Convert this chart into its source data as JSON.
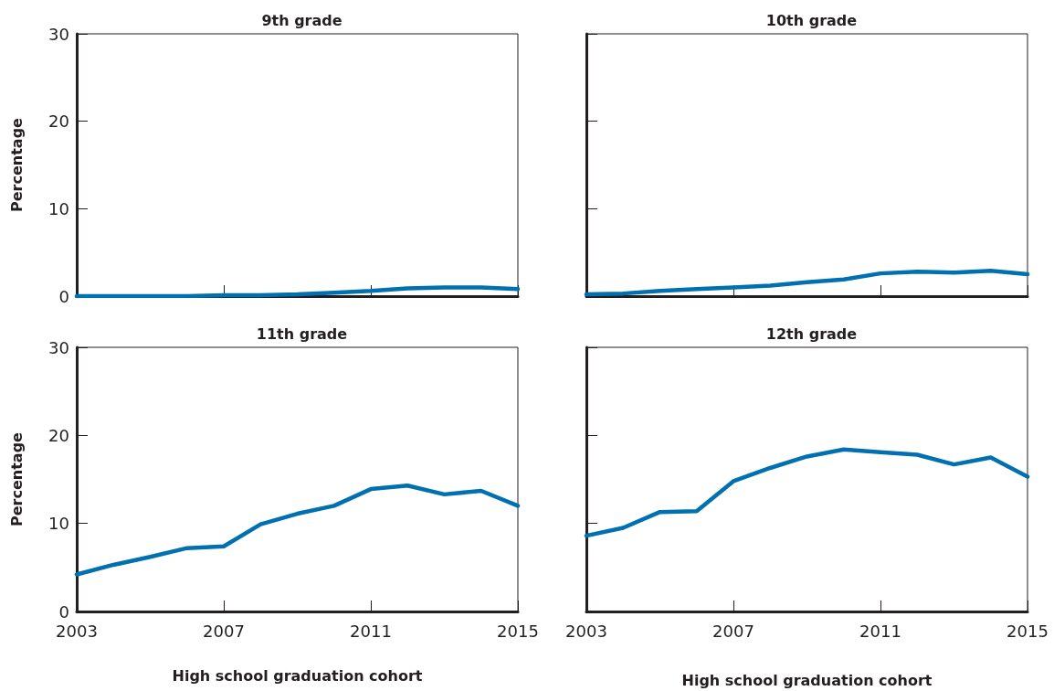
{
  "chart_data": [
    {
      "type": "line",
      "title": "9th grade",
      "ylabel": "Percentage",
      "x": [
        2003,
        2004,
        2005,
        2006,
        2007,
        2008,
        2009,
        2010,
        2011,
        2012,
        2013,
        2014,
        2015
      ],
      "xlim": [
        2003,
        2015
      ],
      "xticks": [
        2003,
        2007,
        2011,
        2015
      ],
      "ylim": [
        0,
        30
      ],
      "yticks": [
        0,
        10,
        20,
        30
      ],
      "tick_labels": "y",
      "series": [
        {
          "color": "#0070b0",
          "values": [
            0,
            0,
            0,
            0,
            0.1,
            0.1,
            0.2,
            0.4,
            0.6,
            0.9,
            1.0,
            1.0,
            0.8
          ]
        }
      ]
    },
    {
      "type": "line",
      "title": "10th grade",
      "x": [
        2003,
        2004,
        2005,
        2006,
        2007,
        2008,
        2009,
        2010,
        2011,
        2012,
        2013,
        2014,
        2015
      ],
      "xlim": [
        2003,
        2015
      ],
      "xticks": [
        2003,
        2007,
        2011,
        2015
      ],
      "ylim": [
        0,
        30
      ],
      "yticks": [
        0,
        10,
        20,
        30
      ],
      "tick_labels": false,
      "series": [
        {
          "color": "#0070b0",
          "values": [
            0.2,
            0.3,
            0.6,
            0.8,
            1.0,
            1.2,
            1.6,
            1.9,
            2.6,
            2.8,
            2.7,
            2.9,
            2.5
          ]
        }
      ]
    },
    {
      "type": "line",
      "title": "11th grade",
      "xlabel": "High school graduation cohort",
      "ylabel": "Percentage",
      "x": [
        2003,
        2004,
        2005,
        2006,
        2007,
        2008,
        2009,
        2010,
        2011,
        2012,
        2013,
        2014,
        2015
      ],
      "xlim": [
        2003,
        2015
      ],
      "xticks": [
        2003,
        2007,
        2011,
        2015
      ],
      "ylim": [
        0,
        30
      ],
      "yticks": [
        0,
        10,
        20,
        30
      ],
      "series": [
        {
          "color": "#0070b0",
          "values": [
            4.2,
            5.3,
            6.2,
            7.2,
            7.4,
            9.9,
            11.1,
            12.0,
            13.9,
            14.3,
            13.3,
            13.7,
            12.0
          ]
        }
      ]
    },
    {
      "type": "line",
      "title": "12th grade",
      "xlabel": "High school graduation cohort",
      "x": [
        2003,
        2004,
        2005,
        2006,
        2007,
        2008,
        2009,
        2010,
        2011,
        2012,
        2013,
        2014,
        2015
      ],
      "xlim": [
        2003,
        2015
      ],
      "xticks": [
        2003,
        2007,
        2011,
        2015
      ],
      "ylim": [
        0,
        30
      ],
      "yticks": [
        0,
        10,
        20,
        30
      ],
      "tick_labels": "x",
      "series": [
        {
          "color": "#0070b0",
          "values": [
            8.6,
            9.5,
            11.3,
            11.4,
            14.8,
            16.3,
            17.6,
            18.4,
            18.1,
            17.8,
            16.7,
            17.5,
            15.3
          ]
        }
      ]
    }
  ]
}
